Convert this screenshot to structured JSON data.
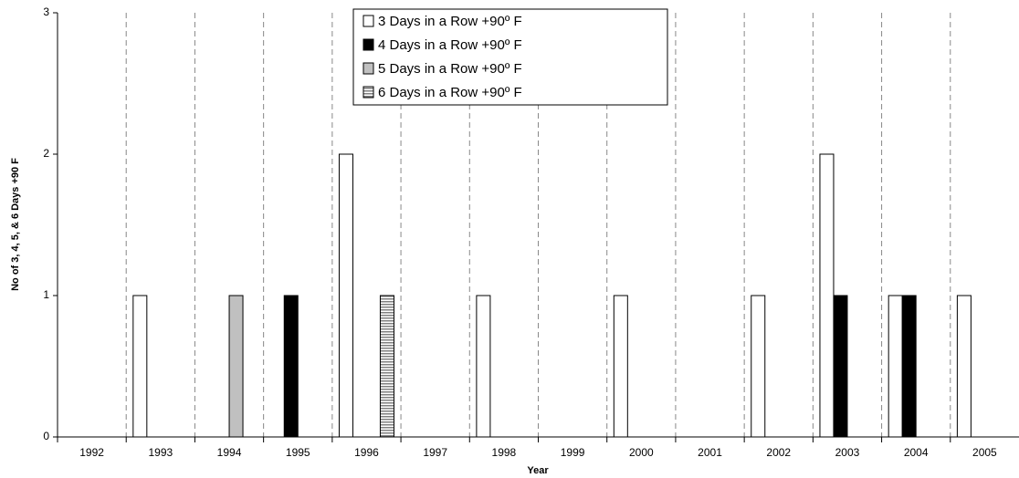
{
  "chart_data": {
    "type": "bar",
    "x_label": "Year",
    "y_label": "No of 3, 4, 5, & 6 Days +90 F",
    "categories": [
      "1992",
      "1993",
      "1994",
      "1995",
      "1996",
      "1997",
      "1998",
      "1999",
      "2000",
      "2001",
      "2002",
      "2003",
      "2004",
      "2005"
    ],
    "series": [
      {
        "name": "3 Days in a Row +90º F",
        "color": "#ffffff",
        "values": [
          0,
          1,
          0,
          0,
          2,
          0,
          1,
          0,
          1,
          0,
          1,
          2,
          1,
          1
        ]
      },
      {
        "name": "4 Days in a Row +90º F",
        "color": "#000000",
        "values": [
          0,
          0,
          0,
          1,
          0,
          0,
          0,
          0,
          0,
          0,
          0,
          1,
          1,
          0
        ]
      },
      {
        "name": "5 Days in a Row +90º F",
        "color": "#c0c0c0",
        "values": [
          0,
          0,
          1,
          0,
          0,
          0,
          0,
          0,
          0,
          0,
          0,
          0,
          0,
          0
        ]
      },
      {
        "name": "6 Days in a Row +90º F",
        "color": "#808080",
        "pattern": "horizontal-stripes",
        "values": [
          0,
          0,
          0,
          0,
          1,
          0,
          0,
          0,
          0,
          0,
          0,
          0,
          0,
          0
        ]
      }
    ],
    "ylim": [
      0,
      3
    ],
    "yticks": [
      0,
      1,
      2,
      3
    ],
    "grid": "x-dashed",
    "legend": "top-center"
  }
}
